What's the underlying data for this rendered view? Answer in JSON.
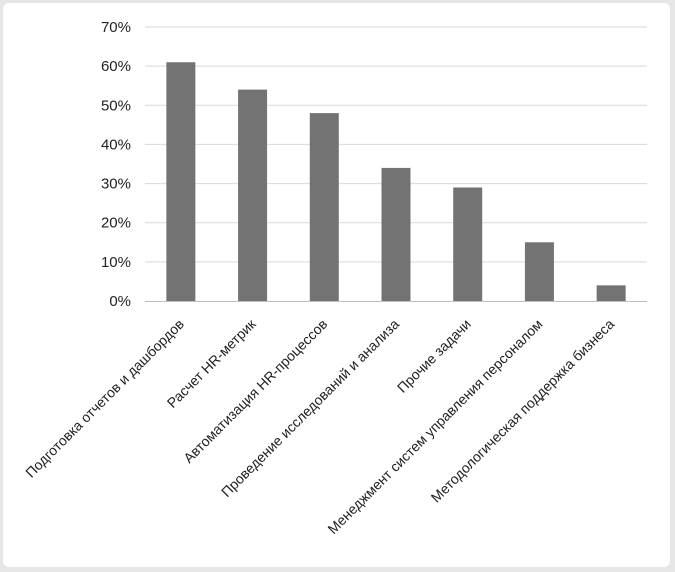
{
  "chart_data": {
    "type": "bar",
    "title": "",
    "xlabel": "",
    "ylabel": "",
    "categories": [
      "Подготовка отчетов и дашбордов",
      "Расчет HR-метрик",
      "Автоматизация HR-процессов",
      "Проведение исследований и анализа",
      "Прочие задачи",
      "Менеджмент систем управления персоналом",
      "Методологическая поддержка бизнеса"
    ],
    "values": [
      61,
      54,
      48,
      34,
      29,
      15,
      4
    ],
    "ylim": [
      0,
      70
    ],
    "y_ticks": [
      0,
      10,
      20,
      30,
      40,
      50,
      60,
      70
    ],
    "y_tick_labels": [
      "0%",
      "10%",
      "20%",
      "30%",
      "40%",
      "50%",
      "60%",
      "70%"
    ],
    "grid": true,
    "legend": "none",
    "colors": {
      "bar": "#737373",
      "grid": "#d9d9d9",
      "axis": "#bfbfbf",
      "background": "#ffffff",
      "frame": "#e6e6e6"
    }
  }
}
